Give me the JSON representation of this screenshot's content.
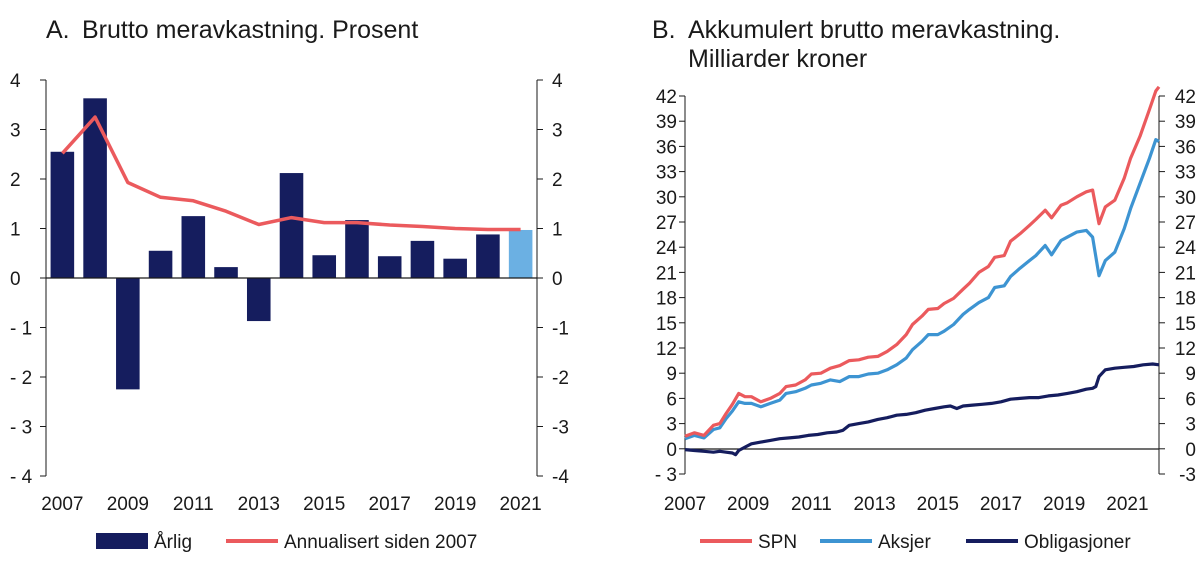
{
  "chart_data": [
    {
      "type": "bar+line",
      "title_letter": "A.",
      "title": "Brutto meravkastning. Prosent",
      "ylim": [
        -4,
        4
      ],
      "yticks": [
        4,
        3,
        2,
        1,
        0,
        -1,
        -2,
        -3,
        -4
      ],
      "ytick_labels": [
        "4",
        "3",
        "2",
        "1",
        "0",
        "- 1",
        "- 2",
        "- 3",
        "- 4"
      ],
      "ytick_labels_right": [
        "4",
        "3",
        "2",
        "1",
        "0",
        "-1",
        "-2",
        "-3",
        "-4"
      ],
      "xtick_labels": [
        "2007",
        "2009",
        "2011",
        "2013",
        "2015",
        "2017",
        "2019",
        "2021"
      ],
      "categories": [
        2007,
        2008,
        2009,
        2010,
        2011,
        2012,
        2013,
        2014,
        2015,
        2016,
        2017,
        2018,
        2019,
        2020,
        2021
      ],
      "series": [
        {
          "name": "Årlig",
          "kind": "bar",
          "color": "#151d5e",
          "highlight_color": "#6bb0e3",
          "highlight_last": true,
          "values": [
            2.55,
            3.63,
            -2.25,
            0.55,
            1.25,
            0.22,
            -0.87,
            2.12,
            0.46,
            1.17,
            0.44,
            0.75,
            0.39,
            0.88,
            0.97
          ]
        },
        {
          "name": "Annualisert siden 2007",
          "kind": "line",
          "color": "#eb5a5d",
          "values": [
            2.52,
            3.25,
            1.93,
            1.63,
            1.56,
            1.35,
            1.08,
            1.22,
            1.12,
            1.12,
            1.07,
            1.04,
            1.0,
            0.98,
            0.98
          ]
        }
      ],
      "legend": [
        "Årlig",
        "Annualisert siden 2007"
      ]
    },
    {
      "type": "line",
      "title_letter": "B.",
      "title_line1": "Akkumulert brutto meravkastning.",
      "title_line2": "Milliarder kroner",
      "ylim": [
        -3,
        42
      ],
      "yticks": [
        42,
        39,
        36,
        33,
        30,
        27,
        24,
        21,
        18,
        15,
        12,
        9,
        6,
        3,
        0,
        -3
      ],
      "ytick_labels": [
        "42",
        "39",
        "36",
        "33",
        "30",
        "27",
        "24",
        "21",
        "18",
        "15",
        "12",
        "9",
        "6",
        "3",
        "0",
        "- 3"
      ],
      "ytick_labels_right": [
        "42",
        "39",
        "36",
        "33",
        "30",
        "27",
        "24",
        "21",
        "18",
        "15",
        "12",
        "9",
        "6",
        "3",
        "0",
        "-3"
      ],
      "xlim": [
        2007,
        2022
      ],
      "xticks": [
        2007,
        2009,
        2011,
        2013,
        2015,
        2017,
        2019,
        2021
      ],
      "xtick_labels": [
        "2007",
        "2009",
        "2011",
        "2013",
        "2015",
        "2017",
        "2019",
        "2021"
      ],
      "series": [
        {
          "name": "SPN",
          "color": "#eb5a5d",
          "points": [
            [
              2007.0,
              1.5
            ],
            [
              2007.3,
              1.9
            ],
            [
              2007.6,
              1.6
            ],
            [
              2007.9,
              2.8
            ],
            [
              2008.1,
              3.0
            ],
            [
              2008.3,
              4.2
            ],
            [
              2008.5,
              5.3
            ],
            [
              2008.7,
              6.6
            ],
            [
              2008.9,
              6.2
            ],
            [
              2009.1,
              6.2
            ],
            [
              2009.4,
              5.6
            ],
            [
              2009.7,
              6.0
            ],
            [
              2010.0,
              6.6
            ],
            [
              2010.2,
              7.4
            ],
            [
              2010.5,
              7.6
            ],
            [
              2010.8,
              8.2
            ],
            [
              2011.0,
              8.9
            ],
            [
              2011.3,
              9.0
            ],
            [
              2011.6,
              9.6
            ],
            [
              2011.9,
              9.9
            ],
            [
              2012.2,
              10.5
            ],
            [
              2012.5,
              10.6
            ],
            [
              2012.8,
              10.9
            ],
            [
              2013.1,
              11.0
            ],
            [
              2013.4,
              11.6
            ],
            [
              2013.7,
              12.4
            ],
            [
              2014.0,
              13.6
            ],
            [
              2014.2,
              14.8
            ],
            [
              2014.5,
              15.8
            ],
            [
              2014.7,
              16.6
            ],
            [
              2015.0,
              16.7
            ],
            [
              2015.2,
              17.3
            ],
            [
              2015.5,
              17.9
            ],
            [
              2015.8,
              19.0
            ],
            [
              2016.0,
              19.7
            ],
            [
              2016.3,
              21.0
            ],
            [
              2016.6,
              21.7
            ],
            [
              2016.8,
              22.8
            ],
            [
              2017.1,
              23.0
            ],
            [
              2017.3,
              24.7
            ],
            [
              2017.6,
              25.6
            ],
            [
              2017.9,
              26.6
            ],
            [
              2018.1,
              27.3
            ],
            [
              2018.4,
              28.4
            ],
            [
              2018.6,
              27.5
            ],
            [
              2018.9,
              29.0
            ],
            [
              2019.1,
              29.3
            ],
            [
              2019.4,
              30.0
            ],
            [
              2019.7,
              30.6
            ],
            [
              2019.9,
              30.8
            ],
            [
              2020.1,
              26.8
            ],
            [
              2020.3,
              28.8
            ],
            [
              2020.6,
              29.6
            ],
            [
              2020.9,
              32.2
            ],
            [
              2021.1,
              34.6
            ],
            [
              2021.4,
              37.2
            ],
            [
              2021.7,
              40.4
            ],
            [
              2021.9,
              42.6
            ],
            [
              2022.0,
              43.1
            ]
          ]
        },
        {
          "name": "Aksjer",
          "color": "#3d94d2",
          "points": [
            [
              2007.0,
              1.2
            ],
            [
              2007.3,
              1.6
            ],
            [
              2007.6,
              1.3
            ],
            [
              2007.9,
              2.3
            ],
            [
              2008.1,
              2.5
            ],
            [
              2008.3,
              3.6
            ],
            [
              2008.5,
              4.5
            ],
            [
              2008.7,
              5.6
            ],
            [
              2008.9,
              5.4
            ],
            [
              2009.1,
              5.4
            ],
            [
              2009.4,
              5.0
            ],
            [
              2009.7,
              5.4
            ],
            [
              2010.0,
              5.8
            ],
            [
              2010.2,
              6.6
            ],
            [
              2010.5,
              6.8
            ],
            [
              2010.8,
              7.2
            ],
            [
              2011.0,
              7.6
            ],
            [
              2011.3,
              7.8
            ],
            [
              2011.6,
              8.2
            ],
            [
              2011.9,
              8.0
            ],
            [
              2012.2,
              8.6
            ],
            [
              2012.5,
              8.6
            ],
            [
              2012.8,
              8.9
            ],
            [
              2013.1,
              9.0
            ],
            [
              2013.4,
              9.4
            ],
            [
              2013.7,
              10.0
            ],
            [
              2014.0,
              10.8
            ],
            [
              2014.2,
              11.8
            ],
            [
              2014.5,
              12.8
            ],
            [
              2014.7,
              13.6
            ],
            [
              2015.0,
              13.6
            ],
            [
              2015.2,
              14.0
            ],
            [
              2015.5,
              14.8
            ],
            [
              2015.8,
              16.0
            ],
            [
              2016.0,
              16.6
            ],
            [
              2016.3,
              17.4
            ],
            [
              2016.6,
              18.0
            ],
            [
              2016.8,
              19.2
            ],
            [
              2017.1,
              19.4
            ],
            [
              2017.3,
              20.5
            ],
            [
              2017.6,
              21.5
            ],
            [
              2017.9,
              22.4
            ],
            [
              2018.1,
              23.0
            ],
            [
              2018.4,
              24.2
            ],
            [
              2018.6,
              23.1
            ],
            [
              2018.9,
              24.8
            ],
            [
              2019.1,
              25.2
            ],
            [
              2019.4,
              25.8
            ],
            [
              2019.7,
              26.0
            ],
            [
              2019.9,
              25.2
            ],
            [
              2020.1,
              20.6
            ],
            [
              2020.3,
              22.4
            ],
            [
              2020.6,
              23.4
            ],
            [
              2020.9,
              26.2
            ],
            [
              2021.1,
              28.6
            ],
            [
              2021.4,
              31.6
            ],
            [
              2021.7,
              34.6
            ],
            [
              2021.9,
              36.8
            ],
            [
              2022.0,
              36.6
            ]
          ]
        },
        {
          "name": "Obligasjoner",
          "color": "#151d5e",
          "points": [
            [
              2007.0,
              -0.1
            ],
            [
              2007.3,
              -0.2
            ],
            [
              2007.6,
              -0.3
            ],
            [
              2007.9,
              -0.4
            ],
            [
              2008.1,
              -0.3
            ],
            [
              2008.3,
              -0.4
            ],
            [
              2008.5,
              -0.5
            ],
            [
              2008.6,
              -0.7
            ],
            [
              2008.7,
              -0.2
            ],
            [
              2008.9,
              0.2
            ],
            [
              2009.1,
              0.6
            ],
            [
              2009.4,
              0.8
            ],
            [
              2009.7,
              1.0
            ],
            [
              2010.0,
              1.2
            ],
            [
              2010.3,
              1.3
            ],
            [
              2010.6,
              1.4
            ],
            [
              2010.9,
              1.6
            ],
            [
              2011.2,
              1.7
            ],
            [
              2011.5,
              1.9
            ],
            [
              2011.8,
              2.0
            ],
            [
              2012.0,
              2.2
            ],
            [
              2012.2,
              2.8
            ],
            [
              2012.5,
              3.0
            ],
            [
              2012.8,
              3.2
            ],
            [
              2013.1,
              3.5
            ],
            [
              2013.4,
              3.7
            ],
            [
              2013.7,
              4.0
            ],
            [
              2014.0,
              4.1
            ],
            [
              2014.3,
              4.3
            ],
            [
              2014.6,
              4.6
            ],
            [
              2014.9,
              4.8
            ],
            [
              2015.2,
              5.0
            ],
            [
              2015.4,
              5.1
            ],
            [
              2015.6,
              4.8
            ],
            [
              2015.8,
              5.1
            ],
            [
              2016.1,
              5.2
            ],
            [
              2016.4,
              5.3
            ],
            [
              2016.7,
              5.4
            ],
            [
              2017.0,
              5.6
            ],
            [
              2017.3,
              5.9
            ],
            [
              2017.6,
              6.0
            ],
            [
              2017.9,
              6.1
            ],
            [
              2018.2,
              6.1
            ],
            [
              2018.5,
              6.3
            ],
            [
              2018.8,
              6.4
            ],
            [
              2019.1,
              6.6
            ],
            [
              2019.4,
              6.8
            ],
            [
              2019.7,
              7.1
            ],
            [
              2019.9,
              7.2
            ],
            [
              2020.0,
              7.4
            ],
            [
              2020.1,
              8.6
            ],
            [
              2020.3,
              9.4
            ],
            [
              2020.6,
              9.6
            ],
            [
              2020.9,
              9.7
            ],
            [
              2021.2,
              9.8
            ],
            [
              2021.5,
              10.0
            ],
            [
              2021.8,
              10.1
            ],
            [
              2022.0,
              10.0
            ]
          ]
        }
      ],
      "legend": [
        "SPN",
        "Aksjer",
        "Obligasjoner"
      ]
    }
  ]
}
